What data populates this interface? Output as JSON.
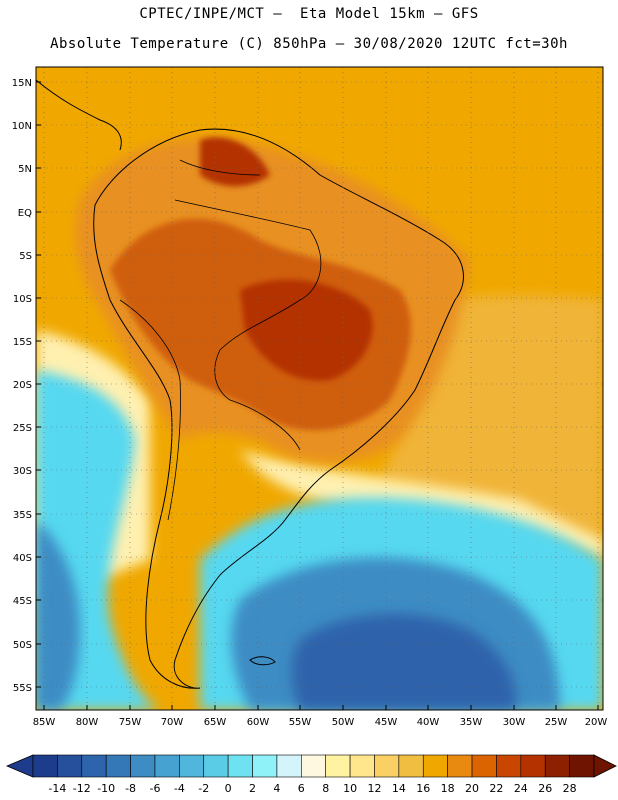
{
  "header": {
    "line1": "CPTEC/INPE/MCT –  Eta Model 15km – GFS",
    "line2": "Absolute Temperature (C) 850hPa – 30/08/2020 12UTC fct=30h"
  },
  "map": {
    "lat_labels": [
      "15N",
      "10N",
      "5N",
      "EQ",
      "5S",
      "10S",
      "15S",
      "20S",
      "25S",
      "30S",
      "35S",
      "40S",
      "45S",
      "50S",
      "55S"
    ],
    "lon_labels": [
      "85W",
      "80W",
      "75W",
      "70W",
      "65W",
      "60W",
      "55W",
      "50W",
      "45W",
      "40W",
      "35W",
      "30W",
      "25W",
      "20W"
    ],
    "regions": [
      {
        "name": "north-atlantic-warm",
        "color": "#f0a800"
      },
      {
        "name": "equatorial-belt",
        "color": "#e89020"
      },
      {
        "name": "continent-hot-core",
        "color": "#d05e10"
      },
      {
        "name": "south-atlantic-warm",
        "color": "#f0b438"
      },
      {
        "name": "subtropical-band",
        "color": "#fff0b0"
      },
      {
        "name": "cold-sector",
        "color": "#57d8f0"
      },
      {
        "name": "deep-cold-sector",
        "color": "#2f8ed0"
      }
    ]
  },
  "colorbar": {
    "labels": [
      "-14",
      "-12",
      "-10",
      "-8",
      "-6",
      "-4",
      "-2",
      "0",
      "2",
      "4",
      "6",
      "8",
      "10",
      "12",
      "14",
      "16",
      "18",
      "20",
      "22",
      "24",
      "26",
      "28"
    ],
    "colors": [
      "#1e3c8c",
      "#27509c",
      "#2e64ac",
      "#3478b8",
      "#3d8cc4",
      "#46a2d0",
      "#50b6dc",
      "#5acce6",
      "#6ee2f0",
      "#8ef2f8",
      "#d2f4fa",
      "#fff8e0",
      "#fff2a0",
      "#ffe68c",
      "#fad064",
      "#f0be40",
      "#f0a800",
      "#e88a10",
      "#dc6400",
      "#c84600",
      "#b43200",
      "#8c2000",
      "#6e1400"
    ],
    "under_color": "#1e3c8c",
    "over_color": "#6e1400"
  }
}
